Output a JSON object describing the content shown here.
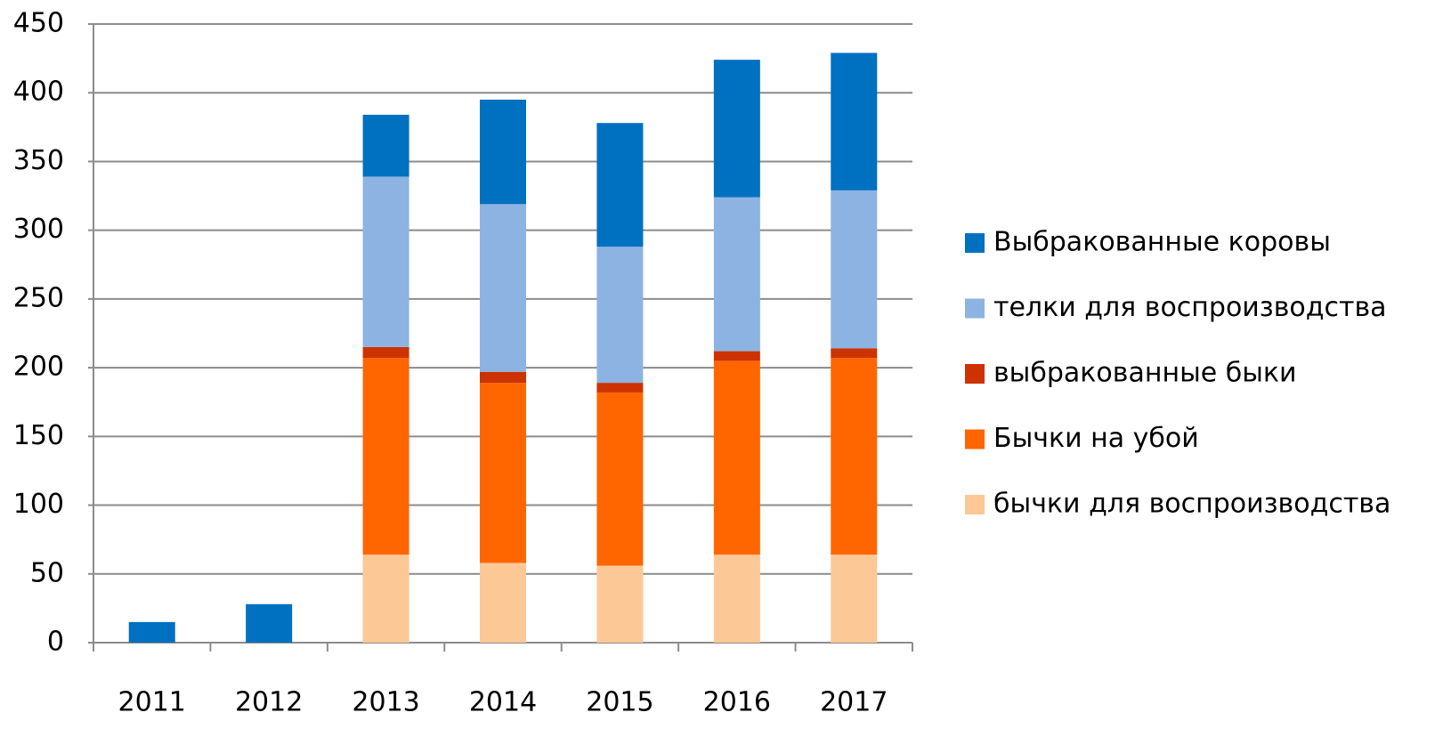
{
  "chart_data": {
    "type": "stacked_bar",
    "categories": [
      "2011",
      "2012",
      "2013",
      "2014",
      "2015",
      "2016",
      "2017"
    ],
    "series": [
      {
        "name": "бычки для воспроизводства",
        "color": "#fcc896",
        "values": [
          null,
          null,
          64,
          58,
          56,
          64,
          64
        ]
      },
      {
        "name": "Бычки на убой",
        "color": "#ff6600",
        "values": [
          null,
          null,
          143,
          131,
          126,
          141,
          143
        ]
      },
      {
        "name": "выбракованные быки",
        "color": "#cc3300",
        "values": [
          null,
          null,
          8,
          8,
          7,
          7,
          7
        ]
      },
      {
        "name": "телки для воспроизводства",
        "color": "#8db3e2",
        "values": [
          null,
          null,
          124,
          122,
          99,
          112,
          115
        ]
      },
      {
        "name": "Выбракованные коровы",
        "color": "#0070c0",
        "values": [
          15,
          28,
          45,
          76,
          90,
          100,
          100
        ]
      }
    ],
    "ylim": [
      0,
      450
    ],
    "yticks": [
      0,
      50,
      100,
      150,
      200,
      250,
      300,
      350,
      400,
      450
    ],
    "grid": true
  }
}
